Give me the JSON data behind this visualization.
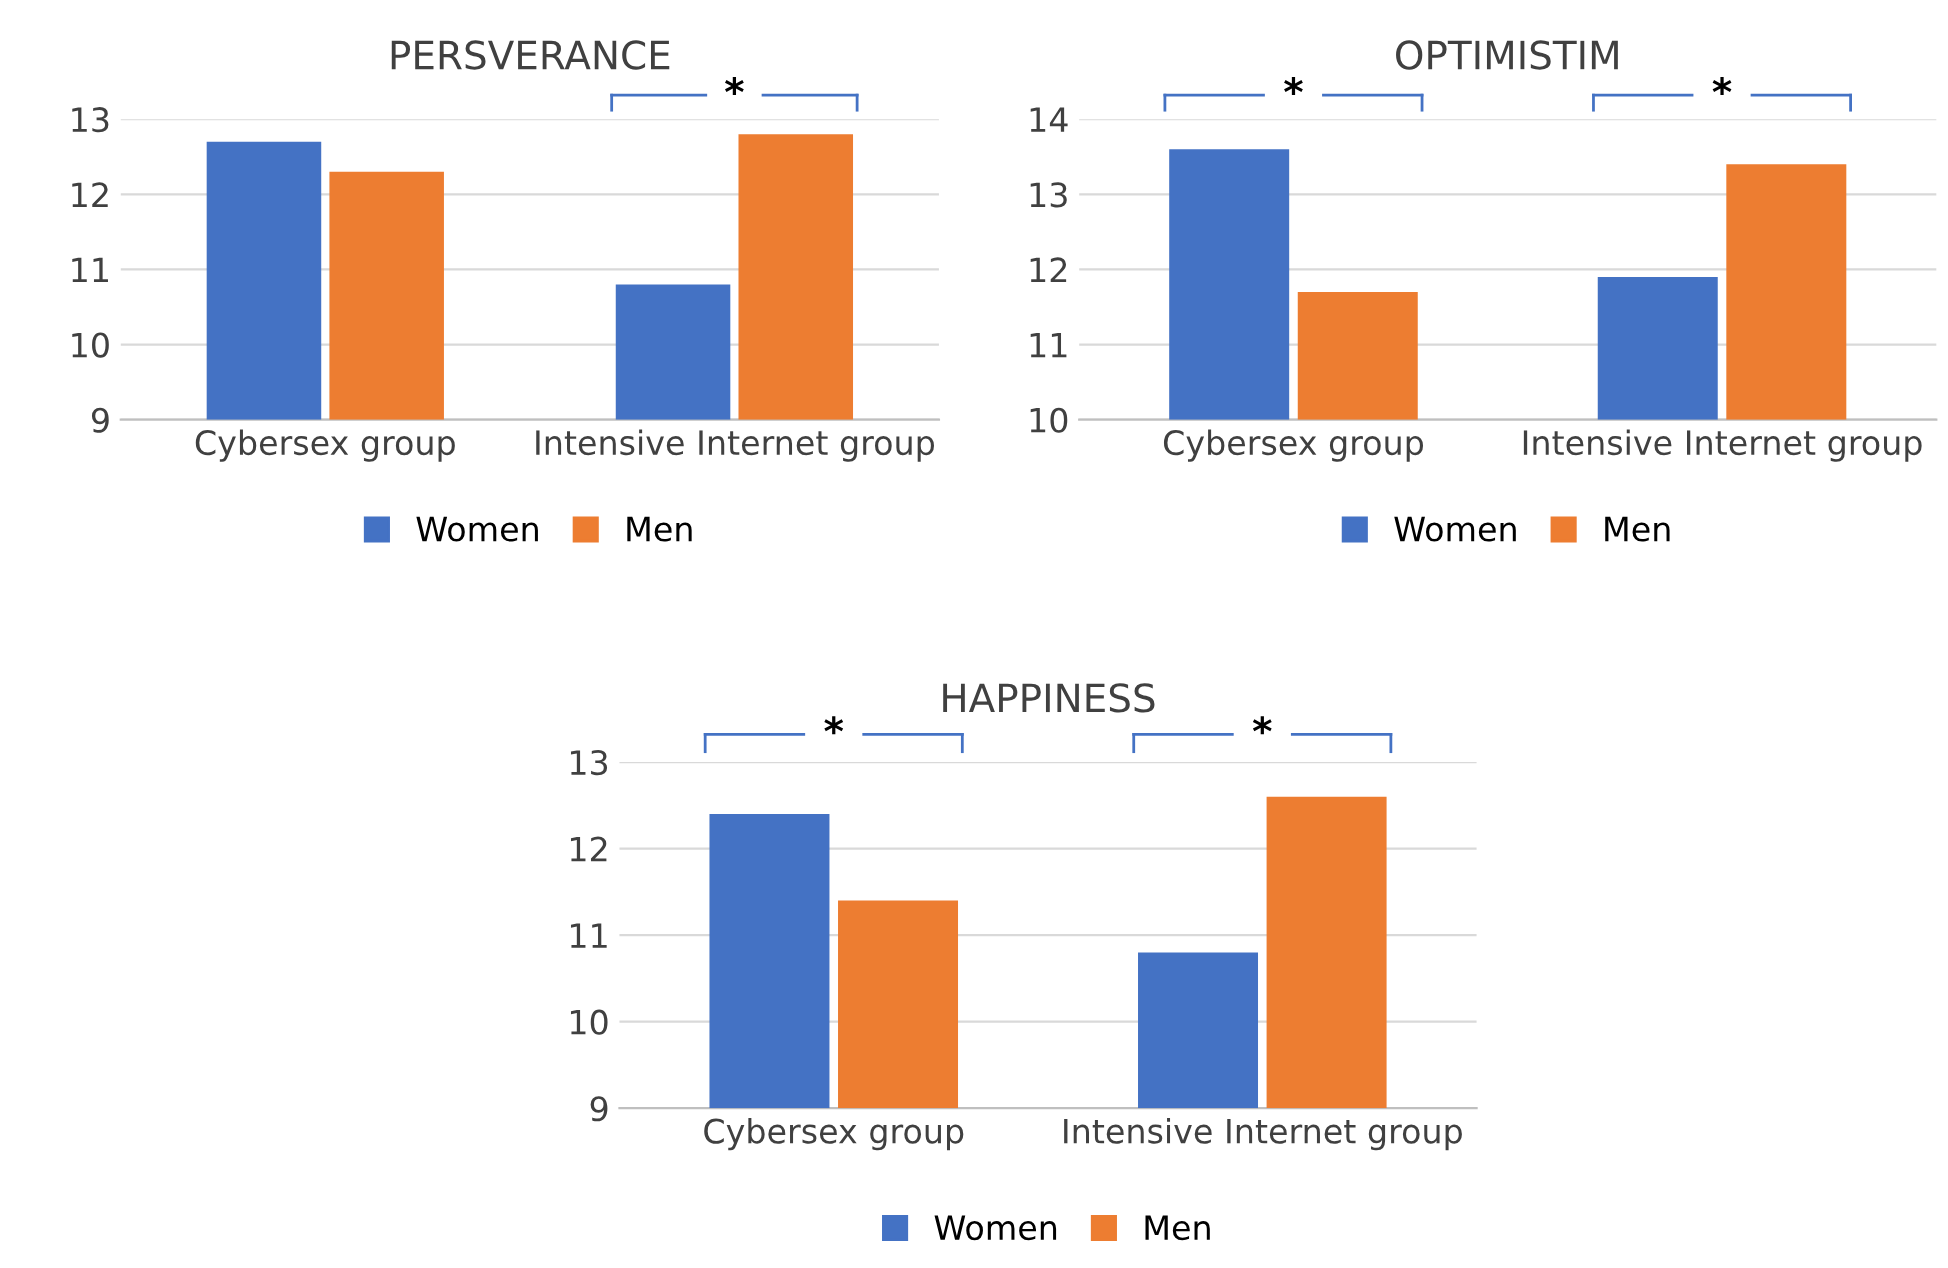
{
  "chart_data": [
    {
      "type": "bar",
      "title": "PERSVERANCE",
      "categories": [
        "Cybersex group",
        "Intensive Internet group"
      ],
      "series": [
        {
          "name": "Women",
          "color": "#4472c4",
          "values": [
            12.7,
            10.8
          ]
        },
        {
          "name": "Men",
          "color": "#ed7d31",
          "values": [
            12.3,
            12.8
          ]
        }
      ],
      "ylim": [
        9,
        13
      ],
      "yticks": [
        9,
        10,
        11,
        12,
        13
      ],
      "grid": "y",
      "legend": "bottom",
      "annotations": [
        "*"
      ]
    },
    {
      "type": "bar",
      "title": "OPTIMISTIM",
      "categories": [
        "Cybersex group",
        "Intensive Internet group"
      ],
      "series": [
        {
          "name": "Women",
          "color": "#4472c4",
          "values": [
            13.6,
            11.9
          ]
        },
        {
          "name": "Men",
          "color": "#ed7d31",
          "values": [
            11.7,
            13.4
          ]
        }
      ],
      "ylim": [
        10,
        14
      ],
      "yticks": [
        10,
        11,
        12,
        13,
        14
      ],
      "grid": "y",
      "legend": "bottom",
      "annotations": [
        "*",
        "*"
      ]
    },
    {
      "type": "bar",
      "title": "HAPPINESS",
      "categories": [
        "Cybersex group",
        "Intensive Internet group"
      ],
      "series": [
        {
          "name": "Women",
          "color": "#4472c4",
          "values": [
            12.4,
            10.8
          ]
        },
        {
          "name": "Men",
          "color": "#ed7d31",
          "values": [
            11.4,
            12.6
          ]
        }
      ],
      "ylim": [
        9,
        13
      ],
      "yticks": [
        9,
        10,
        11,
        12,
        13
      ],
      "grid": "y",
      "legend": "bottom",
      "annotations": [
        "*",
        "*"
      ]
    }
  ]
}
